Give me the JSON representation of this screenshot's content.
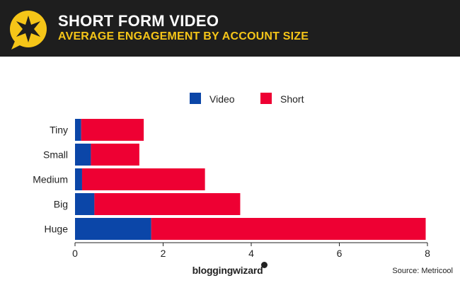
{
  "header": {
    "title": "SHORT FORM VIDEO",
    "subtitle": "AVERAGE ENGAGEMENT BY ACCOUNT SIZE",
    "icon": "star-speech-bubble-icon",
    "accent_color": "#f5c518",
    "background_color": "#1e1e1e"
  },
  "chart_data": {
    "type": "bar",
    "orientation": "horizontal",
    "stacked": true,
    "categories": [
      "Tiny",
      "Small",
      "Medium",
      "Big",
      "Huge"
    ],
    "series": [
      {
        "name": "Video",
        "color": "#0b46a8",
        "values": [
          0.14,
          0.36,
          0.16,
          0.44,
          1.73
        ]
      },
      {
        "name": "Short",
        "color": "#ee0033",
        "values": [
          1.42,
          1.1,
          2.79,
          3.31,
          6.23
        ]
      }
    ],
    "xlim": [
      0,
      8
    ],
    "xticks": [
      "0",
      "2",
      "4",
      "6",
      "8"
    ],
    "legend_position": "top-center",
    "grid": false
  },
  "footer": {
    "brand": "bloggingwizard",
    "source": "Source: Metricool"
  }
}
